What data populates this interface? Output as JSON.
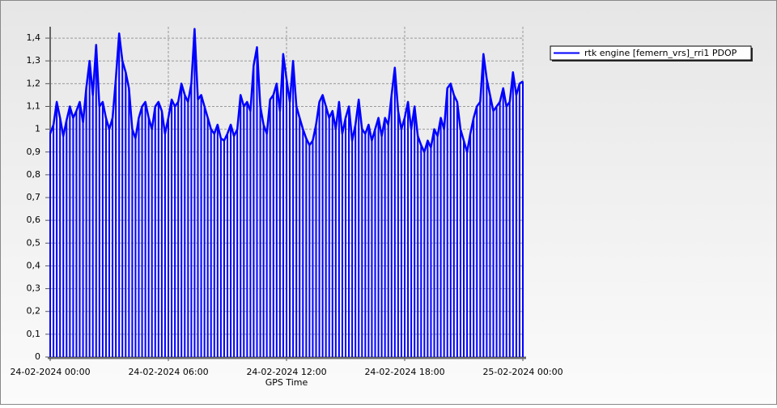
{
  "chart_data": {
    "type": "line",
    "x_label": "GPS Time",
    "x": [
      "24-02-2024 00:00",
      "24-02-2024 00:10",
      "24-02-2024 00:20",
      "24-02-2024 00:30",
      "24-02-2024 00:40",
      "24-02-2024 00:50",
      "24-02-2024 01:00",
      "24-02-2024 01:10",
      "24-02-2024 01:20",
      "24-02-2024 01:30",
      "24-02-2024 01:40",
      "24-02-2024 01:50",
      "24-02-2024 02:00",
      "24-02-2024 02:10",
      "24-02-2024 02:20",
      "24-02-2024 02:30",
      "24-02-2024 02:40",
      "24-02-2024 02:50",
      "24-02-2024 03:00",
      "24-02-2024 03:10",
      "24-02-2024 03:20",
      "24-02-2024 03:30",
      "24-02-2024 03:40",
      "24-02-2024 03:50",
      "24-02-2024 04:00",
      "24-02-2024 04:10",
      "24-02-2024 04:20",
      "24-02-2024 04:30",
      "24-02-2024 04:40",
      "24-02-2024 04:50",
      "24-02-2024 05:00",
      "24-02-2024 05:10",
      "24-02-2024 05:20",
      "24-02-2024 05:30",
      "24-02-2024 05:40",
      "24-02-2024 05:50",
      "24-02-2024 06:00",
      "24-02-2024 06:10",
      "24-02-2024 06:20",
      "24-02-2024 06:30",
      "24-02-2024 06:40",
      "24-02-2024 06:50",
      "24-02-2024 07:00",
      "24-02-2024 07:10",
      "24-02-2024 07:20",
      "24-02-2024 07:30",
      "24-02-2024 07:40",
      "24-02-2024 07:50",
      "24-02-2024 08:00",
      "24-02-2024 08:10",
      "24-02-2024 08:20",
      "24-02-2024 08:30",
      "24-02-2024 08:40",
      "24-02-2024 08:50",
      "24-02-2024 09:00",
      "24-02-2024 09:10",
      "24-02-2024 09:20",
      "24-02-2024 09:30",
      "24-02-2024 09:40",
      "24-02-2024 09:50",
      "24-02-2024 10:00",
      "24-02-2024 10:10",
      "24-02-2024 10:20",
      "24-02-2024 10:30",
      "24-02-2024 10:40",
      "24-02-2024 10:50",
      "24-02-2024 11:00",
      "24-02-2024 11:10",
      "24-02-2024 11:20",
      "24-02-2024 11:30",
      "24-02-2024 11:40",
      "24-02-2024 11:50",
      "24-02-2024 12:00",
      "24-02-2024 12:10",
      "24-02-2024 12:20",
      "24-02-2024 12:30",
      "24-02-2024 12:40",
      "24-02-2024 12:50",
      "24-02-2024 13:00",
      "24-02-2024 13:10",
      "24-02-2024 13:20",
      "24-02-2024 13:30",
      "24-02-2024 13:40",
      "24-02-2024 13:50",
      "24-02-2024 14:00",
      "24-02-2024 14:10",
      "24-02-2024 14:20",
      "24-02-2024 14:30",
      "24-02-2024 14:40",
      "24-02-2024 14:50",
      "24-02-2024 15:00",
      "24-02-2024 15:10",
      "24-02-2024 15:20",
      "24-02-2024 15:30",
      "24-02-2024 15:40",
      "24-02-2024 15:50",
      "24-02-2024 16:00",
      "24-02-2024 16:10",
      "24-02-2024 16:20",
      "24-02-2024 16:30",
      "24-02-2024 16:40",
      "24-02-2024 16:50",
      "24-02-2024 17:00",
      "24-02-2024 17:10",
      "24-02-2024 17:20",
      "24-02-2024 17:30",
      "24-02-2024 17:40",
      "24-02-2024 17:50",
      "24-02-2024 18:00",
      "24-02-2024 18:10",
      "24-02-2024 18:20",
      "24-02-2024 18:30",
      "24-02-2024 18:40",
      "24-02-2024 18:50",
      "24-02-2024 19:00",
      "24-02-2024 19:10",
      "24-02-2024 19:20",
      "24-02-2024 19:30",
      "24-02-2024 19:40",
      "24-02-2024 19:50",
      "24-02-2024 20:00",
      "24-02-2024 20:10",
      "24-02-2024 20:20",
      "24-02-2024 20:30",
      "24-02-2024 20:40",
      "24-02-2024 20:50",
      "24-02-2024 21:00",
      "24-02-2024 21:10",
      "24-02-2024 21:20",
      "24-02-2024 21:30",
      "24-02-2024 21:40",
      "24-02-2024 21:50",
      "24-02-2024 22:00",
      "24-02-2024 22:10",
      "24-02-2024 22:20",
      "24-02-2024 22:30",
      "24-02-2024 22:40",
      "24-02-2024 22:50",
      "24-02-2024 23:00",
      "24-02-2024 23:10",
      "24-02-2024 23:20",
      "24-02-2024 23:30",
      "24-02-2024 23:40",
      "24-02-2024 23:50",
      "25-02-2024 00:00"
    ],
    "series": [
      {
        "name": "rtk engine [femern_vrs]_rri1 PDOP",
        "color": "#0000ff",
        "values": [
          0.98,
          1.02,
          1.12,
          1.05,
          0.97,
          1.04,
          1.1,
          1.05,
          1.08,
          1.12,
          1.03,
          1.18,
          1.3,
          1.15,
          1.37,
          1.1,
          1.12,
          1.05,
          1.0,
          1.05,
          1.22,
          1.42,
          1.3,
          1.25,
          1.18,
          1.0,
          0.96,
          1.05,
          1.1,
          1.12,
          1.05,
          1.0,
          1.1,
          1.12,
          1.08,
          0.98,
          1.05,
          1.13,
          1.1,
          1.12,
          1.2,
          1.15,
          1.12,
          1.2,
          1.44,
          1.13,
          1.15,
          1.1,
          1.05,
          1.0,
          0.98,
          1.02,
          0.96,
          0.95,
          0.98,
          1.02,
          0.97,
          1.0,
          1.15,
          1.1,
          1.12,
          1.08,
          1.28,
          1.36,
          1.1,
          1.02,
          0.98,
          1.13,
          1.15,
          1.2,
          1.08,
          1.33,
          1.22,
          1.12,
          1.3,
          1.1,
          1.05,
          1.0,
          0.96,
          0.93,
          0.95,
          1.02,
          1.12,
          1.15,
          1.1,
          1.05,
          1.08,
          1.0,
          1.12,
          0.98,
          1.05,
          1.1,
          0.95,
          1.02,
          1.13,
          1.0,
          0.98,
          1.02,
          0.95,
          1.0,
          1.05,
          0.97,
          1.05,
          1.02,
          1.15,
          1.27,
          1.08,
          1.0,
          1.05,
          1.12,
          1.0,
          1.1,
          0.97,
          0.93,
          0.9,
          0.95,
          0.92,
          1.0,
          0.97,
          1.05,
          1.0,
          1.18,
          1.2,
          1.15,
          1.12,
          1.0,
          0.95,
          0.9,
          0.98,
          1.05,
          1.1,
          1.12,
          1.33,
          1.22,
          1.15,
          1.08,
          1.1,
          1.12,
          1.18,
          1.1,
          1.12,
          1.25,
          1.15,
          1.2,
          1.21
        ]
      }
    ],
    "xlim": [
      "24-02-2024 00:00",
      "25-02-2024 00:00"
    ],
    "xticks": [
      "24-02-2024 00:00",
      "24-02-2024 06:00",
      "24-02-2024 12:00",
      "24-02-2024 18:00",
      "25-02-2024 00:00"
    ],
    "ylim": [
      0,
      1.45
    ],
    "yticks": [
      0,
      {
        "value": 0.1,
        "label": "0,1"
      },
      {
        "value": 0.2,
        "label": "0,2"
      },
      {
        "value": 0.3,
        "label": "0,3"
      },
      {
        "value": 0.4,
        "label": "0,4"
      },
      {
        "value": 0.5,
        "label": "0,5"
      },
      {
        "value": 0.6,
        "label": "0,6"
      },
      {
        "value": 0.7,
        "label": "0,7"
      },
      {
        "value": 0.8,
        "label": "0,8"
      },
      {
        "value": 0.9,
        "label": "0,9"
      },
      1,
      {
        "value": 1.1,
        "label": "1,1"
      },
      {
        "value": 1.2,
        "label": "1,2"
      },
      {
        "value": 1.3,
        "label": "1,3"
      },
      {
        "value": 1.4,
        "label": "1,4"
      }
    ],
    "grid": true,
    "legend": "top-right"
  }
}
